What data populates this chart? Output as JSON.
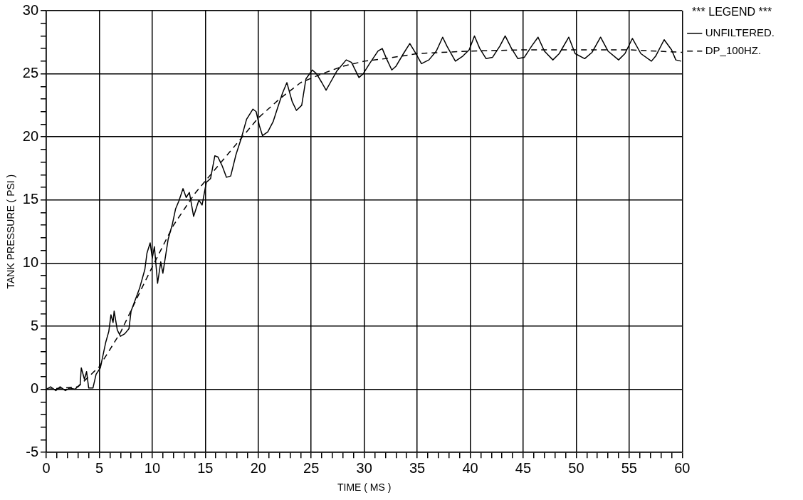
{
  "chart_data": {
    "type": "line",
    "xlabel": "TIME ( MS )",
    "ylabel": "TANK PRESSURE ( PSI )",
    "legend_title": "*** LEGEND ***",
    "legend": "top right",
    "grid": true,
    "marker": "none",
    "xlim": [
      0,
      60
    ],
    "ylim": [
      -5,
      30
    ],
    "xticks": [
      0,
      {
        "value": 1,
        "label": null
      },
      {
        "value": 2,
        "label": null
      },
      {
        "value": 3,
        "label": null
      },
      {
        "value": 4,
        "label": null
      },
      5,
      {
        "value": 6,
        "label": null
      },
      {
        "value": 7,
        "label": null
      },
      {
        "value": 8,
        "label": null
      },
      {
        "value": 9,
        "label": null
      },
      10,
      {
        "value": 11,
        "label": null
      },
      {
        "value": 12,
        "label": null
      },
      {
        "value": 13,
        "label": null
      },
      {
        "value": 14,
        "label": null
      },
      15,
      {
        "value": 16,
        "label": null
      },
      {
        "value": 17,
        "label": null
      },
      {
        "value": 18,
        "label": null
      },
      {
        "value": 19,
        "label": null
      },
      20,
      {
        "value": 21,
        "label": null
      },
      {
        "value": 22,
        "label": null
      },
      {
        "value": 23,
        "label": null
      },
      {
        "value": 24,
        "label": null
      },
      25,
      {
        "value": 26,
        "label": null
      },
      {
        "value": 27,
        "label": null
      },
      {
        "value": 28,
        "label": null
      },
      {
        "value": 29,
        "label": null
      },
      30,
      {
        "value": 31,
        "label": null
      },
      {
        "value": 32,
        "label": null
      },
      {
        "value": 33,
        "label": null
      },
      {
        "value": 34,
        "label": null
      },
      35,
      {
        "value": 36,
        "label": null
      },
      {
        "value": 37,
        "label": null
      },
      {
        "value": 38,
        "label": null
      },
      {
        "value": 39,
        "label": null
      },
      40,
      {
        "value": 41,
        "label": null
      },
      {
        "value": 42,
        "label": null
      },
      {
        "value": 43,
        "label": null
      },
      {
        "value": 44,
        "label": null
      },
      45,
      {
        "value": 46,
        "label": null
      },
      {
        "value": 47,
        "label": null
      },
      {
        "value": 48,
        "label": null
      },
      {
        "value": 49,
        "label": null
      },
      50,
      {
        "value": 51,
        "label": null
      },
      {
        "value": 52,
        "label": null
      },
      {
        "value": 53,
        "label": null
      },
      {
        "value": 54,
        "label": null
      },
      55,
      {
        "value": 56,
        "label": null
      },
      {
        "value": 57,
        "label": null
      },
      {
        "value": 58,
        "label": null
      },
      {
        "value": 59,
        "label": null
      },
      60
    ],
    "yticks": [
      -5,
      {
        "value": -4,
        "label": null
      },
      {
        "value": -3,
        "label": null
      },
      {
        "value": -2,
        "label": null
      },
      {
        "value": -1,
        "label": null
      },
      0,
      {
        "value": 1,
        "label": null
      },
      {
        "value": 2,
        "label": null
      },
      {
        "value": 3,
        "label": null
      },
      {
        "value": 4,
        "label": null
      },
      5,
      {
        "value": 6,
        "label": null
      },
      {
        "value": 7,
        "label": null
      },
      {
        "value": 8,
        "label": null
      },
      {
        "value": 9,
        "label": null
      },
      10,
      {
        "value": 11,
        "label": null
      },
      {
        "value": 12,
        "label": null
      },
      {
        "value": 13,
        "label": null
      },
      {
        "value": 14,
        "label": null
      },
      15,
      {
        "value": 16,
        "label": null
      },
      {
        "value": 17,
        "label": null
      },
      {
        "value": 18,
        "label": null
      },
      {
        "value": 19,
        "label": null
      },
      20,
      {
        "value": 21,
        "label": null
      },
      {
        "value": 22,
        "label": null
      },
      {
        "value": 23,
        "label": null
      },
      {
        "value": 24,
        "label": null
      },
      25,
      {
        "value": 26,
        "label": null
      },
      {
        "value": 27,
        "label": null
      },
      {
        "value": 28,
        "label": null
      },
      {
        "value": 29,
        "label": null
      },
      30
    ],
    "series": [
      {
        "name": "UNFILTERED.",
        "color": "#000000",
        "line_style": "solid",
        "x": [
          0,
          0.4,
          0.9,
          1.3,
          1.8,
          2.2,
          2.7,
          3.2,
          3.3,
          3.6,
          3.8,
          4.0,
          4.4,
          4.7,
          5.1,
          5.6,
          5.9,
          6.1,
          6.3,
          6.4,
          6.7,
          7.0,
          7.4,
          7.8,
          8.0,
          8.4,
          8.8,
          9.3,
          9.5,
          9.8,
          10.0,
          10.2,
          10.5,
          10.8,
          11.0,
          11.5,
          11.9,
          12.2,
          12.5,
          12.9,
          13.2,
          13.5,
          13.9,
          14.4,
          14.7,
          15.1,
          15.5,
          15.9,
          16.2,
          16.6,
          17.0,
          17.4,
          17.9,
          18.4,
          18.9,
          19.5,
          19.8,
          20.1,
          20.4,
          20.9,
          21.4,
          21.9,
          22.3,
          22.7,
          23.2,
          23.6,
          24.1,
          24.5,
          25.1,
          25.5,
          26.0,
          26.4,
          26.8,
          27.4,
          28.3,
          28.8,
          29.5,
          29.9,
          30.5,
          31.3,
          31.7,
          32.1,
          32.6,
          33.0,
          33.7,
          34.3,
          34.8,
          35.4,
          36.1,
          36.8,
          37.4,
          37.8,
          38.6,
          39.3,
          39.9,
          40.4,
          40.9,
          41.5,
          42.1,
          42.8,
          43.3,
          43.9,
          44.5,
          45.1,
          45.8,
          46.4,
          47.0,
          47.8,
          48.4,
          49.3,
          49.9,
          50.8,
          51.5,
          52.3,
          53.0,
          54.0,
          54.6,
          55.3,
          56.1,
          57.1,
          57.5,
          58.3,
          59.0,
          59.4,
          59.9
        ],
        "values": [
          0,
          0.2,
          -0.1,
          0.2,
          -0.1,
          0.1,
          0,
          0.4,
          1.7,
          0.8,
          1.4,
          0.1,
          0.1,
          1.2,
          1.7,
          3.7,
          4.6,
          5.9,
          5.3,
          6.2,
          4.7,
          4.2,
          4.4,
          4.8,
          6.2,
          7.1,
          8.0,
          9.5,
          10.8,
          11.6,
          10.4,
          11.3,
          8.4,
          10.1,
          9.2,
          11.9,
          13.1,
          14.3,
          14.9,
          15.9,
          15.2,
          15.6,
          13.7,
          15.0,
          14.6,
          16.4,
          16.7,
          18.5,
          18.4,
          17.7,
          16.8,
          16.9,
          18.6,
          19.9,
          21.4,
          22.2,
          22.0,
          20.9,
          20.1,
          20.4,
          21.2,
          22.5,
          23.5,
          24.3,
          22.8,
          22.1,
          22.5,
          24.6,
          25.3,
          25.0,
          24.3,
          23.7,
          24.3,
          25.2,
          26.1,
          25.9,
          24.7,
          25.0,
          25.8,
          26.8,
          27.0,
          26.2,
          25.3,
          25.6,
          26.6,
          27.4,
          26.7,
          25.8,
          26.1,
          26.8,
          27.9,
          27.2,
          26.0,
          26.4,
          26.9,
          28.0,
          27.0,
          26.2,
          26.3,
          27.2,
          28.0,
          27.0,
          26.2,
          26.3,
          27.2,
          27.9,
          26.8,
          26.1,
          26.6,
          27.9,
          26.6,
          26.2,
          26.7,
          27.9,
          26.8,
          26.1,
          26.6,
          27.8,
          26.6,
          26.0,
          26.4,
          27.7,
          26.9,
          26.1,
          26.0
        ]
      },
      {
        "name": "DP_100HZ.",
        "color": "#000000",
        "line_style": "dashed",
        "x": [
          0,
          3,
          5,
          7,
          9,
          10,
          12,
          14,
          16,
          18,
          20,
          22,
          24,
          26,
          28,
          30,
          32,
          35,
          40,
          45,
          50,
          55,
          60
        ],
        "values": [
          0,
          0.2,
          1.8,
          4.5,
          8.0,
          9.7,
          13.0,
          15.5,
          17.5,
          19.5,
          21.5,
          23.0,
          24.3,
          25.0,
          25.6,
          26.0,
          26.2,
          26.6,
          26.8,
          26.9,
          26.9,
          26.9,
          26.7
        ]
      }
    ]
  }
}
